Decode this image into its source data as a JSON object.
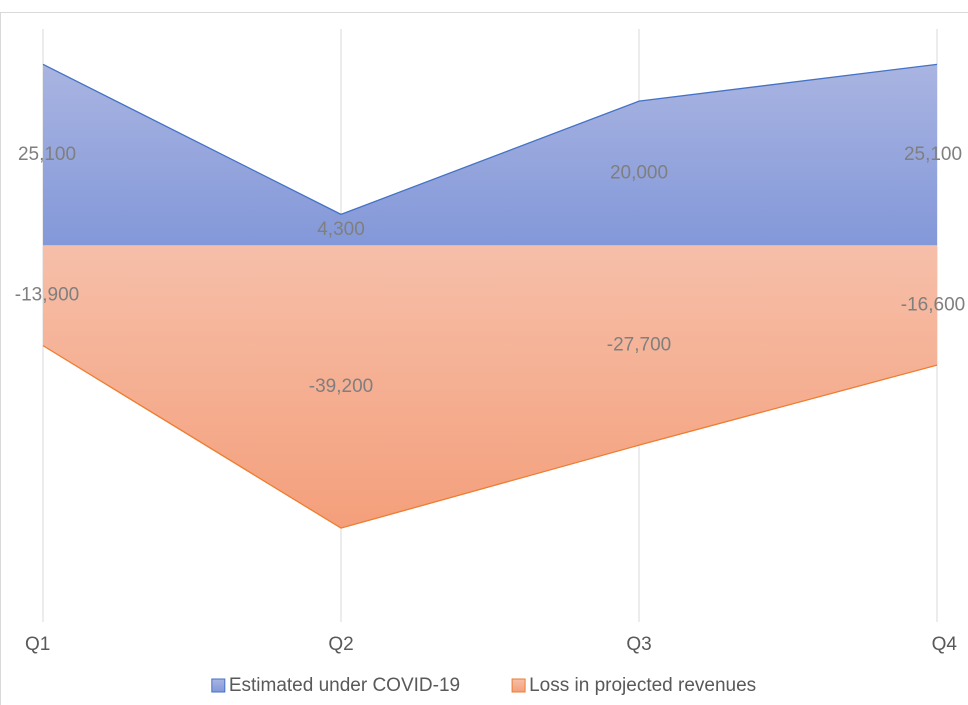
{
  "chart_data": {
    "type": "area",
    "categories": [
      "Q1",
      "Q2",
      "Q3",
      "Q4"
    ],
    "series": [
      {
        "name": "Estimated under COVID-19",
        "color": "#4472c4",
        "values": [
          25100,
          4300,
          20000,
          25100
        ],
        "value_labels": [
          "25,100",
          "4,300",
          "20,000",
          "25,100"
        ]
      },
      {
        "name": "Loss in projected revenues",
        "color": "#ed7d31",
        "values": [
          -13900,
          -39200,
          -27700,
          -16600
        ],
        "value_labels": [
          "-13,900",
          "-39,200",
          "-27,700",
          "-16,600"
        ]
      }
    ],
    "ylim": [
      -50000,
      30000
    ],
    "grid": true,
    "legend": "bottom"
  }
}
